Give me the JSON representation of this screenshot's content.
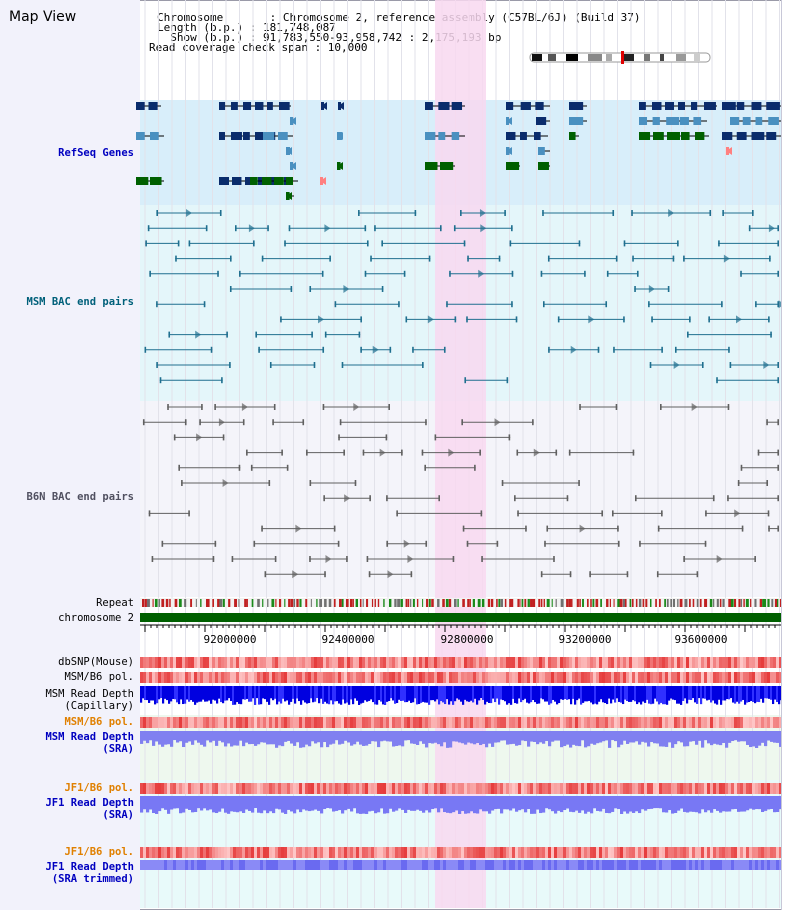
{
  "header": {
    "title": "Map View",
    "info_lines": [
      "Chromosome       : Chromosome 2, reference assembly (C57BL/6J) (Build 37)",
      "Length (b.p.) : 181,748,087",
      "  Show (b.p.) : 91,783,550-93,958,742 : 2,175,193 bp",
      "Read coverage check span : 10,000"
    ]
  },
  "tracks": {
    "refseq": {
      "label": "RefSeq Genes",
      "color": "#0000c0"
    },
    "msm_bac": {
      "label": "MSM BAC end pairs",
      "color": "#00607a"
    },
    "b6n_bac": {
      "label": "B6N BAC end pairs",
      "color": "#505060"
    },
    "repeat": {
      "label": "Repeat",
      "color": "#000000"
    },
    "chromosome": {
      "label": "chromosome 2",
      "color": "#000000"
    },
    "dbsnp": {
      "label": "dbSNP(Mouse)",
      "color": "#000000"
    },
    "msm_b6_pol": {
      "label": "MSM/B6 pol.",
      "color": "#000000"
    },
    "msm_read_depth_cap": {
      "label": "MSM Read Depth\n(Capillary)",
      "color": "#000000"
    },
    "msm_b6_pol_sra": {
      "label": "MSM/B6 pol.",
      "color": "#e08000"
    },
    "msm_read_depth_sra": {
      "label": "MSM Read Depth\n(SRA)",
      "color": "#0000c0"
    },
    "jf1_b6_pol": {
      "label": "JF1/B6 pol.",
      "color": "#e08000"
    },
    "jf1_read_depth_sra": {
      "label": "JF1 Read Depth\n(SRA)",
      "color": "#0000c0"
    },
    "jf1_b6_pol_trim": {
      "label": "JF1/B6 pol.",
      "color": "#e08000"
    },
    "jf1_read_depth_trim": {
      "label": "JF1 Read Depth\n(SRA trimmed)",
      "color": "#0000c0"
    }
  },
  "ruler": {
    "ticks": [
      "92000000",
      "92400000",
      "92800000",
      "93200000",
      "93600000"
    ]
  },
  "colors": {
    "refseq_bg": "#d8eefa",
    "msm_bg": "#e4f6fa",
    "b6n_bg": "#f4f4fa",
    "highlight": "#f8d8f0",
    "gene_dark": "#0a2c6c",
    "gene_light": "#4a90c0",
    "gene_green": "#006000",
    "chromosome_bar": "#006000",
    "msm_pair": "#1f6f8f",
    "b6n_pair": "#606060"
  }
}
